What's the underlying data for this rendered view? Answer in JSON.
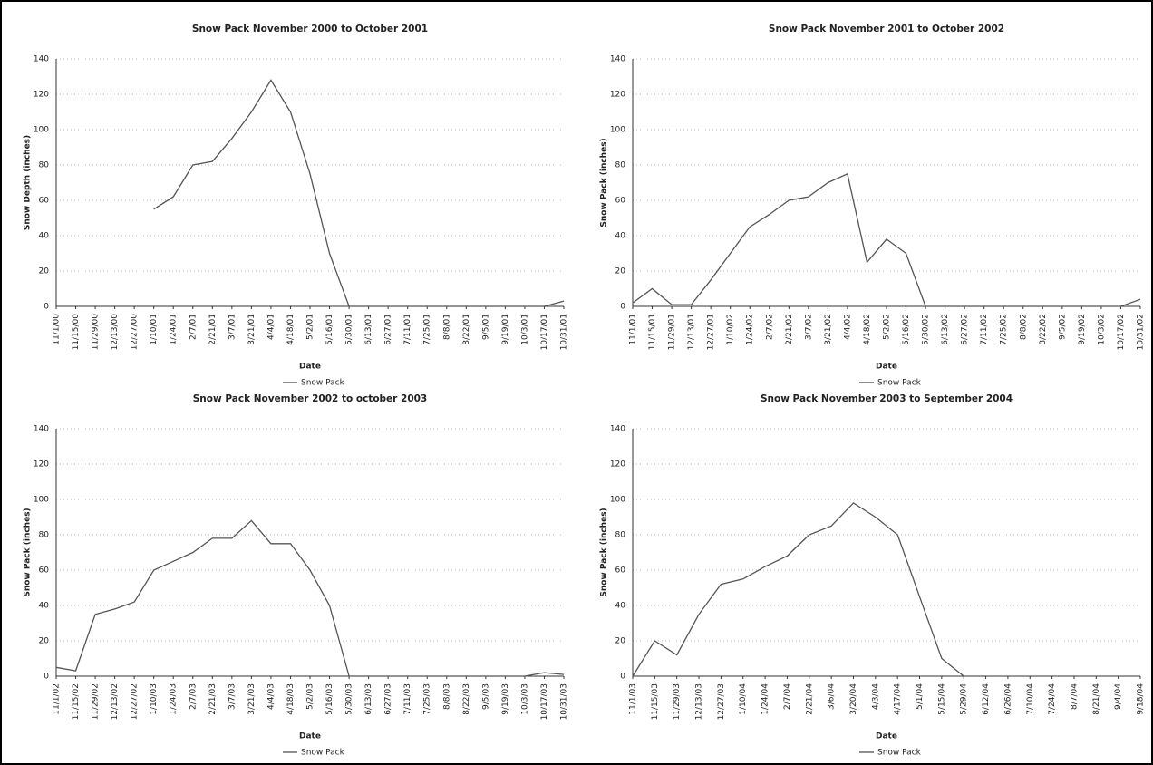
{
  "chart_data": [
    {
      "type": "line",
      "title": "Snow Pack November 2000 to October 2001",
      "x_label": "Date",
      "y_label": "Snow Depth (inches)",
      "categories": [
        "11/1/00",
        "11/15/00",
        "11/29/00",
        "12/13/00",
        "12/27/00",
        "1/10/01",
        "1/24/01",
        "2/7/01",
        "2/21/01",
        "3/7/01",
        "3/21/01",
        "4/4/01",
        "4/18/01",
        "5/2/01",
        "5/16/01",
        "5/30/01",
        "6/13/01",
        "6/27/01",
        "7/11/01",
        "7/25/01",
        "8/8/01",
        "8/22/01",
        "9/5/01",
        "9/19/01",
        "10/3/01",
        "10/17/01",
        "10/31/01"
      ],
      "series": [
        {
          "name": "Snow Pack",
          "color": "#555555",
          "values": [
            null,
            null,
            null,
            null,
            null,
            55,
            62,
            80,
            82,
            95,
            110,
            128,
            110,
            75,
            30,
            0,
            0,
            0,
            0,
            0,
            0,
            0,
            0,
            0,
            0,
            0,
            3
          ]
        }
      ],
      "ylim": [
        0,
        140
      ],
      "yticks": [
        0,
        20,
        40,
        60,
        80,
        100,
        120,
        140
      ],
      "grid": true
    },
    {
      "type": "line",
      "title": "Snow Pack November 2001 to October 2002",
      "x_label": "Date",
      "y_label": "Snow Pack (inches)",
      "categories": [
        "11/1/01",
        "11/15/01",
        "11/29/01",
        "12/13/01",
        "12/27/01",
        "1/10/02",
        "1/24/02",
        "2/7/02",
        "2/21/02",
        "3/7/02",
        "3/21/02",
        "4/4/02",
        "4/18/02",
        "5/2/02",
        "5/16/02",
        "5/30/02",
        "6/13/02",
        "6/27/02",
        "7/11/02",
        "7/25/02",
        "8/8/02",
        "8/22/02",
        "9/5/02",
        "9/19/02",
        "10/3/02",
        "10/17/02",
        "10/31/02"
      ],
      "series": [
        {
          "name": "Snow Pack",
          "color": "#555555",
          "values": [
            2,
            10,
            1,
            1,
            15,
            30,
            45,
            52,
            60,
            62,
            70,
            75,
            25,
            38,
            30,
            0,
            0,
            0,
            0,
            0,
            0,
            0,
            0,
            0,
            0,
            0,
            4
          ]
        }
      ],
      "ylim": [
        0,
        140
      ],
      "yticks": [
        0,
        20,
        40,
        60,
        80,
        100,
        120,
        140
      ],
      "grid": true
    },
    {
      "type": "line",
      "title": "Snow Pack November 2002 to october 2003",
      "x_label": "Date",
      "y_label": "Snow Pack (inches)",
      "categories": [
        "11/1/02",
        "11/15/02",
        "11/29/02",
        "12/13/02",
        "12/27/02",
        "1/10/03",
        "1/24/03",
        "2/7/03",
        "2/21/03",
        "3/7/03",
        "3/21/03",
        "4/4/03",
        "4/18/03",
        "5/2/03",
        "5/16/03",
        "5/30/03",
        "6/13/03",
        "6/27/03",
        "7/11/03",
        "7/25/03",
        "8/8/03",
        "8/22/03",
        "9/5/03",
        "9/19/03",
        "10/3/03",
        "10/17/03",
        "10/31/03"
      ],
      "series": [
        {
          "name": "Snow Pack",
          "color": "#555555",
          "values": [
            5,
            3,
            35,
            38,
            42,
            60,
            65,
            70,
            78,
            78,
            88,
            75,
            75,
            60,
            40,
            0,
            0,
            0,
            0,
            0,
            0,
            0,
            0,
            0,
            0,
            2,
            1
          ]
        }
      ],
      "ylim": [
        0,
        140
      ],
      "yticks": [
        0,
        20,
        40,
        60,
        80,
        100,
        120,
        140
      ],
      "grid": true
    },
    {
      "type": "line",
      "title": "Snow Pack November 2003 to September 2004",
      "x_label": "Date",
      "y_label": "Snow Pack (inches)",
      "categories": [
        "11/1/03",
        "11/15/03",
        "11/29/03",
        "12/13/03",
        "12/27/03",
        "1/10/04",
        "1/24/04",
        "2/7/04",
        "2/21/04",
        "3/6/04",
        "3/20/04",
        "4/3/04",
        "4/17/04",
        "5/1/04",
        "5/15/04",
        "5/29/04",
        "6/12/04",
        "6/26/04",
        "7/10/04",
        "7/24/04",
        "8/7/04",
        "8/21/04",
        "9/4/04",
        "9/18/04"
      ],
      "series": [
        {
          "name": "Snow Pack",
          "color": "#555555",
          "values": [
            0,
            20,
            12,
            35,
            52,
            55,
            62,
            68,
            80,
            85,
            98,
            90,
            80,
            45,
            10,
            0,
            null,
            null,
            null,
            null,
            null,
            null,
            null,
            null
          ]
        }
      ],
      "ylim": [
        0,
        140
      ],
      "yticks": [
        0,
        20,
        40,
        60,
        80,
        100,
        120,
        140
      ],
      "grid": true
    }
  ]
}
